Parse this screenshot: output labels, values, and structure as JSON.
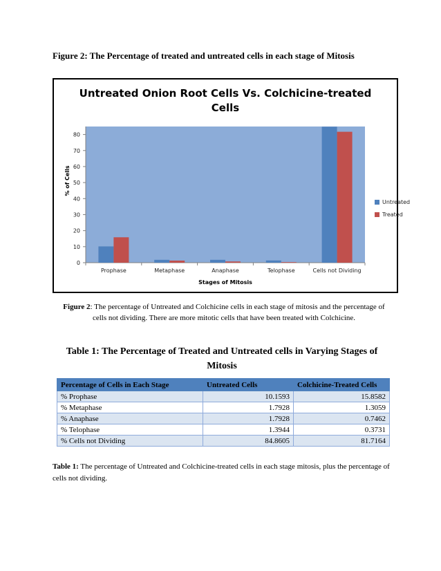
{
  "figure_heading": "Figure 2: The Percentage of treated and untreated cells in each stage of Mitosis",
  "chart_data": {
    "type": "bar",
    "title_line1": "Untreated Onion Root Cells Vs. Colchicine-treated",
    "title_line2": "Cells",
    "xlabel": "Stages of Mitosis",
    "ylabel": "% of Cells",
    "ylim": [
      0,
      85
    ],
    "yticks": [
      0,
      10,
      20,
      30,
      40,
      50,
      60,
      70,
      80
    ],
    "grid": false,
    "legend_position": "right",
    "categories": [
      "Prophase",
      "Metaphase",
      "Anaphase",
      "Telophase",
      "Cells not Dividing"
    ],
    "series": [
      {
        "name": "Untreated",
        "color": "#4f81bd",
        "values": [
          10.1593,
          1.7928,
          1.7928,
          1.3944,
          84.8605
        ]
      },
      {
        "name": "Treated",
        "color": "#c0504d",
        "values": [
          15.8582,
          1.3059,
          0.7462,
          0.3731,
          81.7164
        ]
      }
    ],
    "plot_background": "#8cacd8"
  },
  "figure_caption": {
    "label": "Figure 2",
    "text": ": The percentage of Untreated and Colchicine cells in each stage of mitosis and the percentage of cells not dividing. There are more mitotic cells that have been treated with Colchicine."
  },
  "table_heading": "Table 1: The Percentage of Treated and Untreated cells in Varying Stages of Mitosis",
  "table": {
    "headers": [
      "Percentage of Cells in Each Stage",
      "Untreated Cells",
      "Colchicine-Treated Cells"
    ],
    "rows": [
      [
        "% Prophase",
        "10.1593",
        "15.8582"
      ],
      [
        "% Metaphase",
        "1.7928",
        "1.3059"
      ],
      [
        "% Anaphase",
        "1.7928",
        "0.7462"
      ],
      [
        "% Telophase",
        "1.3944",
        "0.3731"
      ],
      [
        "% Cells not Dividing",
        "84.8605",
        "81.7164"
      ]
    ]
  },
  "table_caption": {
    "label": "Table 1:",
    "text": " The percentage of Untreated and Colchicine-treated cells in each stage mitosis, plus the percentage of cells not dividing."
  }
}
